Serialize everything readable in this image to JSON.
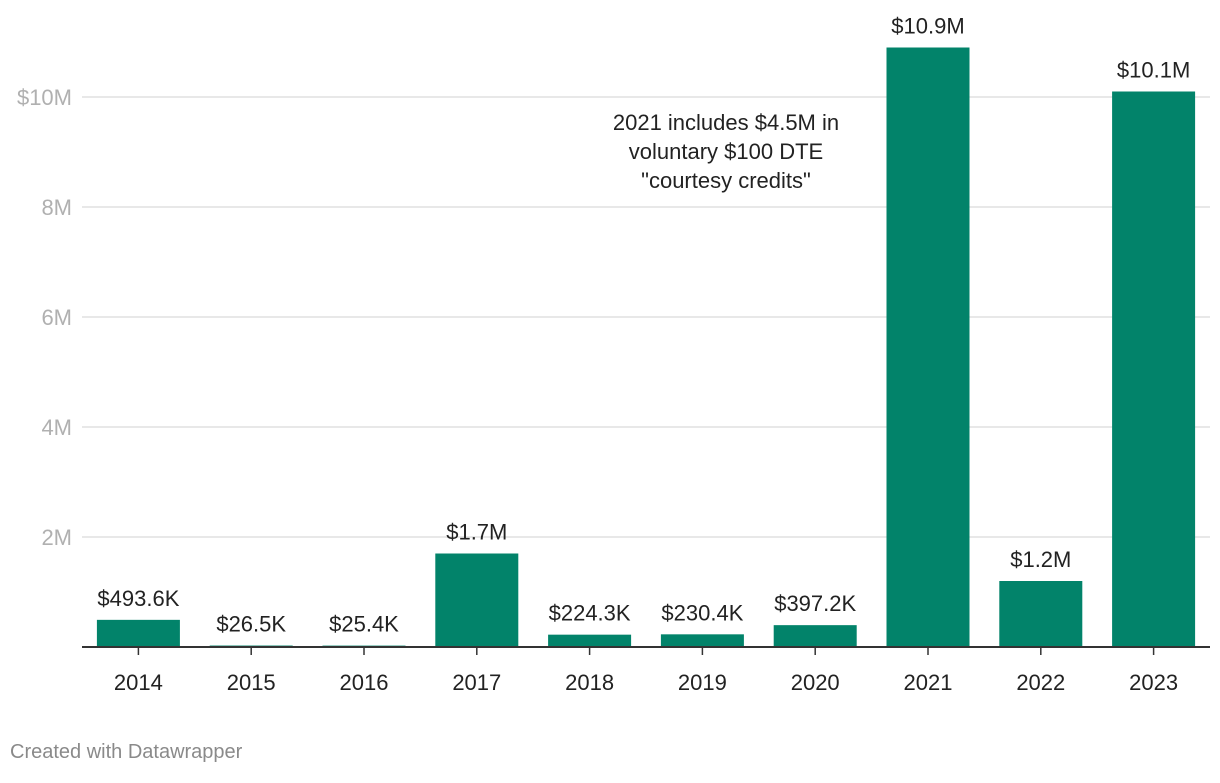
{
  "chart_data": {
    "type": "bar",
    "title": "",
    "xlabel": "",
    "ylabel": "",
    "categories": [
      "2014",
      "2015",
      "2016",
      "2017",
      "2018",
      "2019",
      "2020",
      "2021",
      "2022",
      "2023"
    ],
    "values": [
      493600,
      26500,
      25400,
      1700000,
      224300,
      230400,
      397200,
      10900000,
      1200000,
      10100000
    ],
    "value_labels": [
      "$493.6K",
      "$26.5K",
      "$25.4K",
      "$1.7M",
      "$224.3K",
      "$230.4K",
      "$397.2K",
      "$10.9M",
      "$1.2M",
      "$10.1M"
    ],
    "ylim": [
      0,
      11000000
    ],
    "y_ticks": [
      {
        "value": 2000000,
        "label": "2M"
      },
      {
        "value": 4000000,
        "label": "4M"
      },
      {
        "value": 6000000,
        "label": "6M"
      },
      {
        "value": 8000000,
        "label": "8M"
      },
      {
        "value": 10000000,
        "label": "$10M"
      }
    ],
    "grid": true,
    "annotation": {
      "lines": [
        "2021 includes $4.5M in",
        "voluntary $100 DTE",
        "\"courtesy credits\""
      ]
    }
  },
  "colors": {
    "bar": "#02836a",
    "grid": "#e1e1e1",
    "axis": "#333333",
    "tick_label": "#b0b0b0",
    "text": "#222222",
    "credit": "#8a8a8a"
  },
  "footer": {
    "credit": "Created with Datawrapper"
  }
}
